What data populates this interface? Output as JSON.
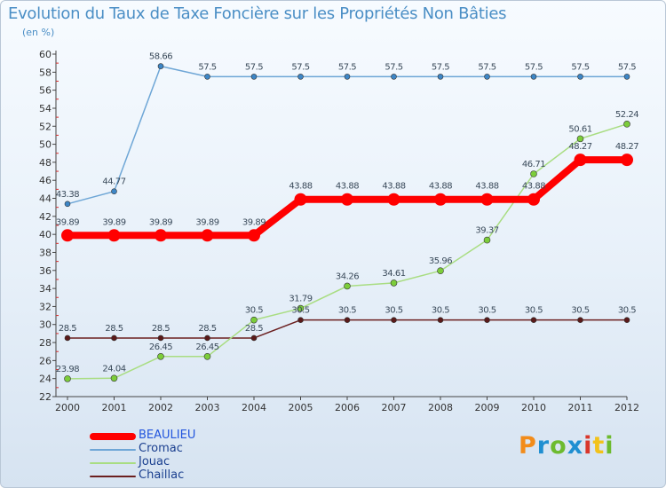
{
  "title": "Evolution du Taux de Taxe Foncière sur les Propriétés Non Bâties",
  "subtitle": "(en %)",
  "logo": {
    "text": "Proxiti",
    "colors": [
      "#f28c1a",
      "#1f8fd1",
      "#6dbb2f",
      "#1f8fd1",
      "#d9372b",
      "#f2c21a",
      "#6dbb2f"
    ]
  },
  "chart_data": {
    "type": "line",
    "title": "Evolution du Taux de Taxe Foncière sur les Propriétés Non Bâties",
    "ylabel": "(en %)",
    "xlabel": "",
    "ylim": [
      22,
      60
    ],
    "ytick_step": 2,
    "categories": [
      "2000",
      "2001",
      "2002",
      "2003",
      "2004",
      "2005",
      "2006",
      "2007",
      "2008",
      "2009",
      "2010",
      "2011",
      "2012"
    ],
    "grid": false,
    "legend_position": "bottom-left",
    "series": [
      {
        "name": "Chaillac",
        "color": "#6b1f1f",
        "marker": "#5a1a1a",
        "width": 1.5,
        "radius": 3,
        "values": [
          28.5,
          28.5,
          28.5,
          28.5,
          28.5,
          30.5,
          30.5,
          30.5,
          30.5,
          30.5,
          30.5,
          30.5,
          30.5
        ],
        "labels": [
          "28.5",
          "28.5",
          "28.5",
          "28.5",
          "28.5",
          "30.5",
          "30.5",
          "30.5",
          "30.5",
          "30.5",
          "30.5",
          "30.5",
          "30.5"
        ]
      },
      {
        "name": "Jouac",
        "color": "#a9dd82",
        "marker": "#7ccd3a",
        "width": 1.5,
        "radius": 3.5,
        "values": [
          23.98,
          24.04,
          26.45,
          26.45,
          30.5,
          31.79,
          34.26,
          34.61,
          35.96,
          39.37,
          46.71,
          50.61,
          52.24
        ],
        "labels": [
          "23.98",
          "24.04",
          "26.45",
          "26.45",
          "30.5",
          "31.79",
          "34.26",
          "34.61",
          "35.96",
          "39.37",
          "46.71",
          "50.61",
          "52.24"
        ]
      },
      {
        "name": "Cromac",
        "color": "#6ea6d6",
        "marker": "#3d86c6",
        "width": 1.5,
        "radius": 3,
        "values": [
          43.38,
          44.77,
          58.66,
          57.5,
          57.5,
          57.5,
          57.5,
          57.5,
          57.5,
          57.5,
          57.5,
          57.5,
          57.5
        ],
        "labels": [
          "43.38",
          "44.77",
          "58.66",
          "57.5",
          "57.5",
          "57.5",
          "57.5",
          "57.5",
          "57.5",
          "57.5",
          "57.5",
          "57.5",
          "57.5"
        ]
      },
      {
        "name": "BEAULIEU",
        "color": "#ff0000",
        "marker": "#ff0000",
        "width": 8,
        "radius": 7,
        "values": [
          39.89,
          39.89,
          39.89,
          39.89,
          39.89,
          43.88,
          43.88,
          43.88,
          43.88,
          43.88,
          43.88,
          48.27,
          48.27
        ],
        "labels": [
          "39.89",
          "39.89",
          "39.89",
          "39.89",
          "39.89",
          "43.88",
          "43.88",
          "43.88",
          "43.88",
          "43.88",
          "43.88",
          "48.27",
          "48.27"
        ]
      }
    ],
    "legend": [
      {
        "name": "BEAULIEU",
        "color": "#ff0000",
        "text_color": "#2255dd"
      },
      {
        "name": "Cromac",
        "color": "#6ea6d6",
        "text_color": "#1a3f8f"
      },
      {
        "name": "Jouac",
        "color": "#a9dd82",
        "text_color": "#1a3f8f"
      },
      {
        "name": "Chaillac",
        "color": "#6b1f1f",
        "text_color": "#1a3f8f"
      }
    ]
  }
}
